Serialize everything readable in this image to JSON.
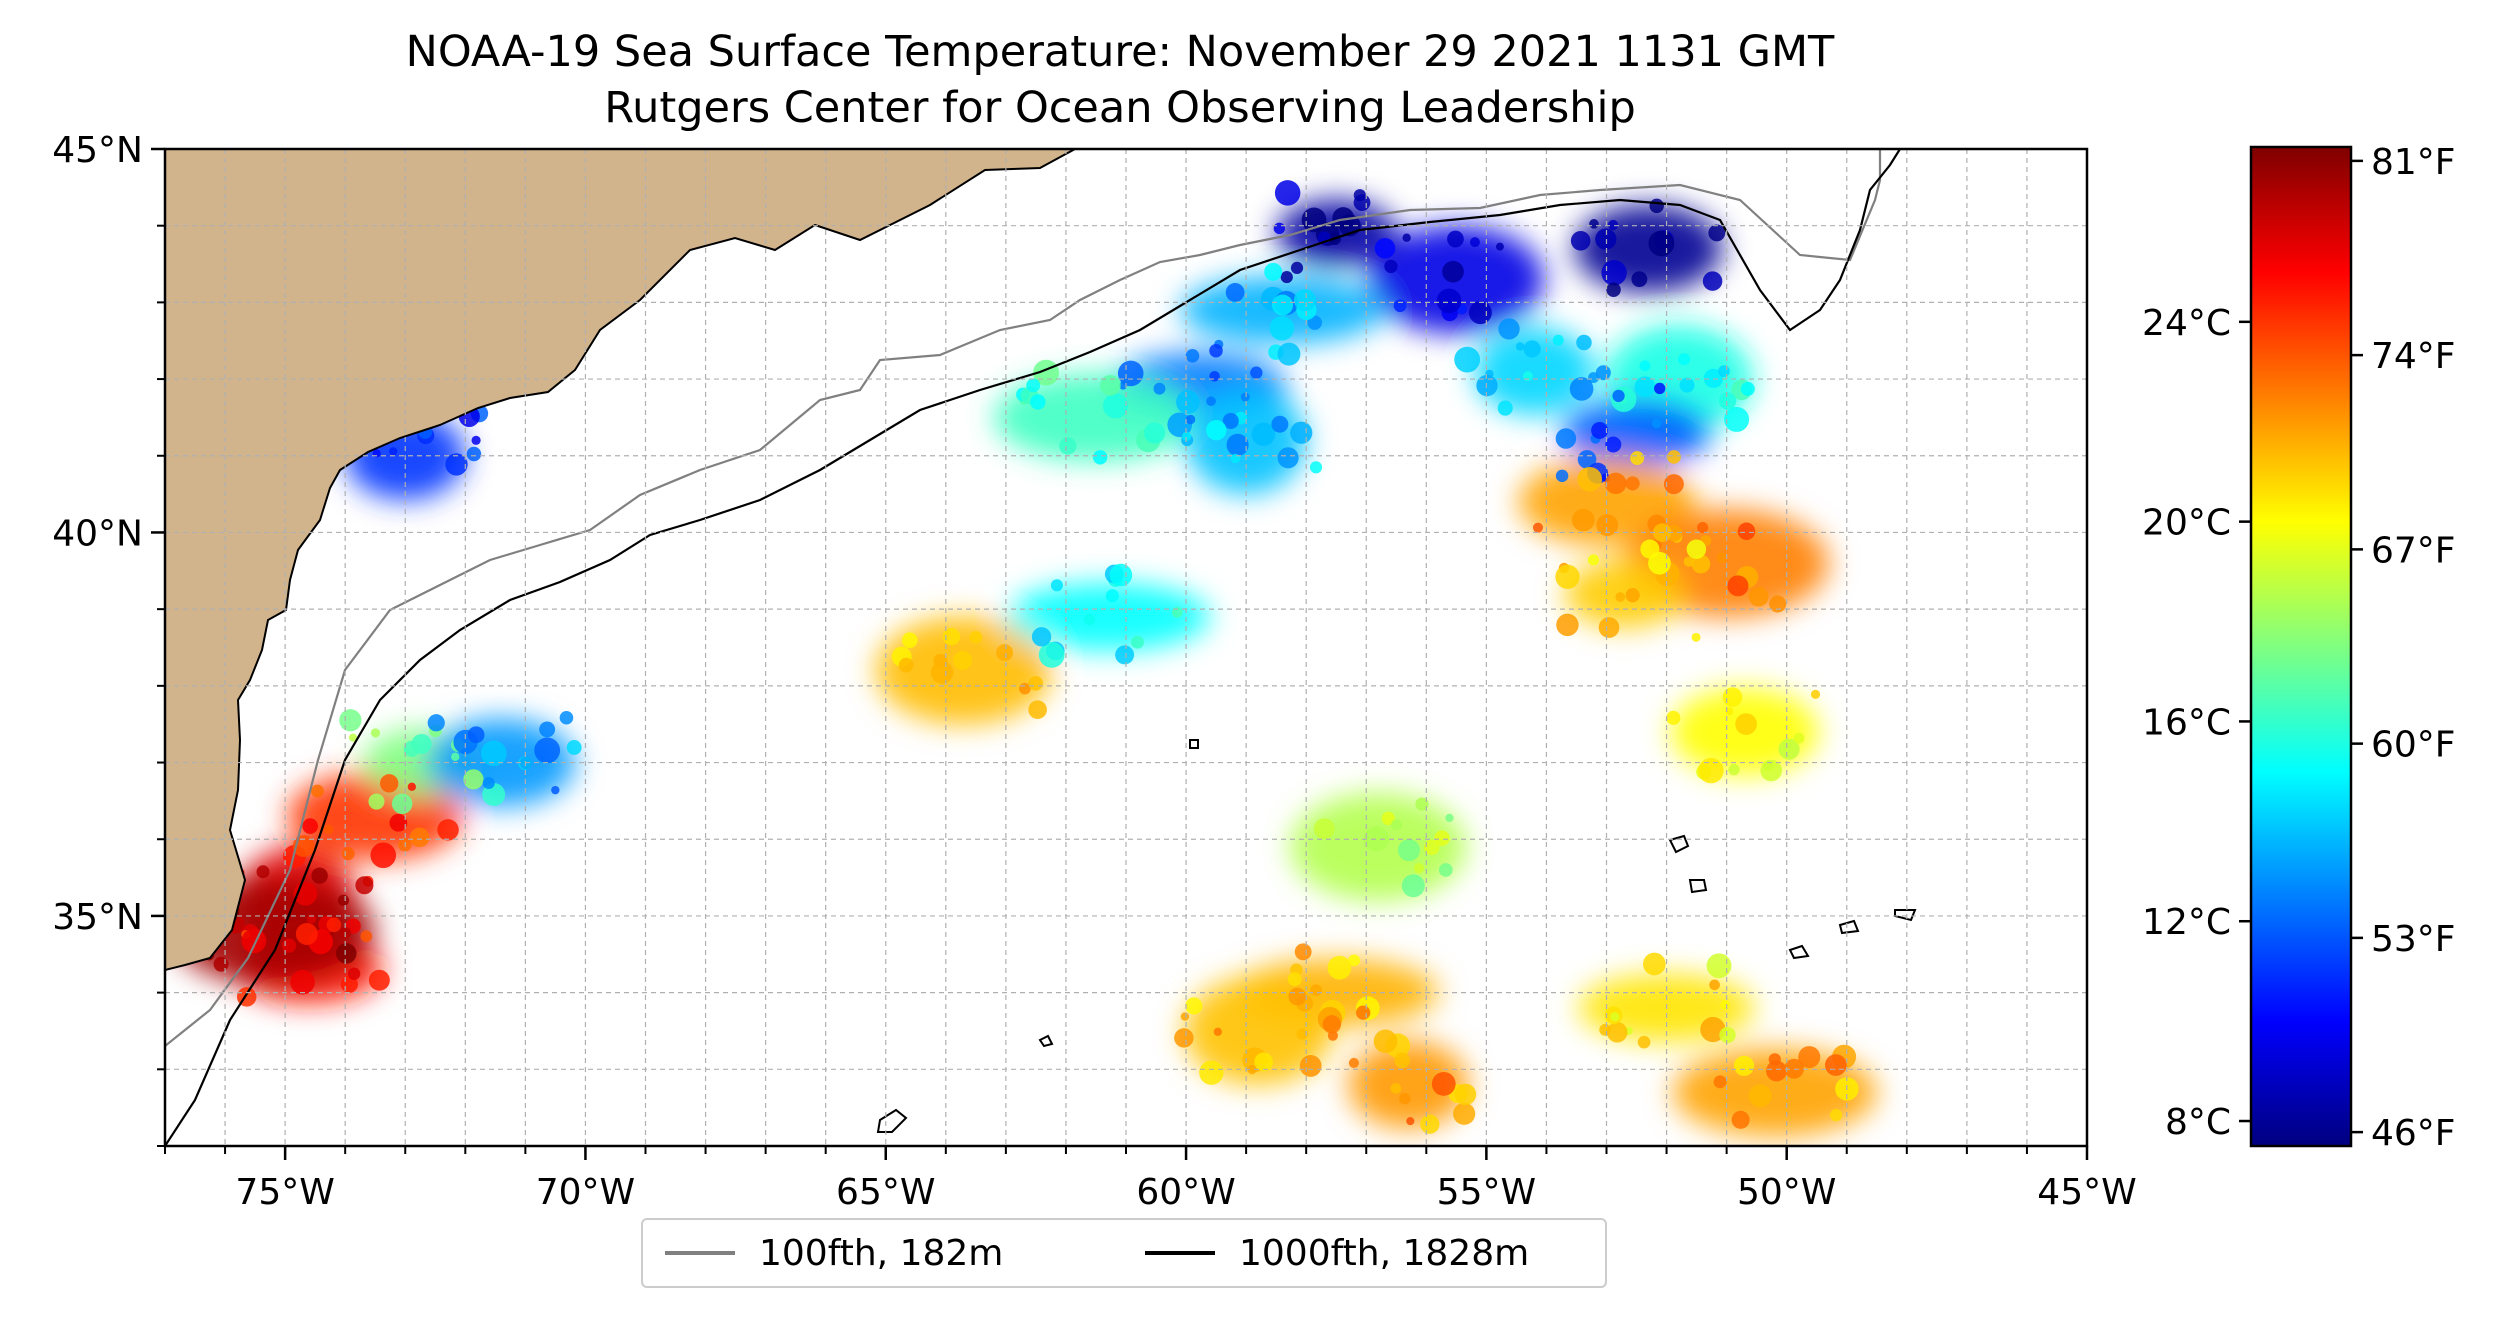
{
  "title_line1": "NOAA-19 Sea Surface Temperature: November 29 2021 1131 GMT",
  "title_line2": "Rutgers Center for Ocean Observing Leadership",
  "map": {
    "lon_range": [
      -77,
      -45
    ],
    "lat_range": [
      32,
      45
    ],
    "x_ticks": [
      {
        "value": -75,
        "label": "75°W"
      },
      {
        "value": -70,
        "label": "70°W"
      },
      {
        "value": -65,
        "label": "65°W"
      },
      {
        "value": -60,
        "label": "60°W"
      },
      {
        "value": -55,
        "label": "55°W"
      },
      {
        "value": -50,
        "label": "50°W"
      },
      {
        "value": -45,
        "label": "45°W"
      }
    ],
    "y_ticks": [
      {
        "value": 45,
        "label": "45°N"
      },
      {
        "value": 40,
        "label": "40°N"
      },
      {
        "value": 35,
        "label": "35°N"
      }
    ],
    "grid": true,
    "land_color": "#d2b48c",
    "water_body_color": "#9fbfe8"
  },
  "colorbar": {
    "colormap": "jet",
    "celsius_range": [
      7.5,
      27.5
    ],
    "celsius_ticks": [
      {
        "value": 8,
        "label": "8°C"
      },
      {
        "value": 12,
        "label": "12°C"
      },
      {
        "value": 16,
        "label": "16°C"
      },
      {
        "value": 20,
        "label": "20°C"
      },
      {
        "value": 24,
        "label": "24°C"
      }
    ],
    "fahrenheit_ticks": [
      {
        "value": 46,
        "label": "46°F"
      },
      {
        "value": 53,
        "label": "53°F"
      },
      {
        "value": 60,
        "label": "60°F"
      },
      {
        "value": 67,
        "label": "67°F"
      },
      {
        "value": 74,
        "label": "74°F"
      },
      {
        "value": 81,
        "label": "81°F"
      }
    ]
  },
  "legend": {
    "items": [
      {
        "label": "100fth, 182m",
        "color": "#808080"
      },
      {
        "label": "1000fth, 1828m",
        "color": "#000000"
      }
    ]
  },
  "sst_patches": [
    {
      "lon": -57.5,
      "lat": 43.9,
      "temp_c": 8.2
    },
    {
      "lon": -52.3,
      "lat": 43.7,
      "temp_c": 7.9
    },
    {
      "lon": -55.5,
      "lat": 43.3,
      "temp_c": 9.5
    },
    {
      "lon": -58.4,
      "lat": 42.9,
      "temp_c": 13.5
    },
    {
      "lon": -54.2,
      "lat": 42.1,
      "temp_c": 14.2
    },
    {
      "lon": -51.8,
      "lat": 42.0,
      "temp_c": 15.5
    },
    {
      "lon": -59.8,
      "lat": 41.9,
      "temp_c": 12.4
    },
    {
      "lon": -61.5,
      "lat": 41.5,
      "temp_c": 16.2
    },
    {
      "lon": -59.0,
      "lat": 41.2,
      "temp_c": 13.8
    },
    {
      "lon": -52.5,
      "lat": 41.3,
      "temp_c": 11.8
    },
    {
      "lon": -53.0,
      "lat": 40.4,
      "temp_c": 21.8
    },
    {
      "lon": -51.0,
      "lat": 39.6,
      "temp_c": 22.5
    },
    {
      "lon": -52.7,
      "lat": 39.2,
      "temp_c": 21.0
    },
    {
      "lon": -50.7,
      "lat": 37.4,
      "temp_c": 20.0
    },
    {
      "lon": -56.8,
      "lat": 35.9,
      "temp_c": 18.5
    },
    {
      "lon": -57.5,
      "lat": 34.0,
      "temp_c": 21.5
    },
    {
      "lon": -56.3,
      "lat": 32.8,
      "temp_c": 22.0
    },
    {
      "lon": -58.8,
      "lat": 33.5,
      "temp_c": 21.2
    },
    {
      "lon": -52.0,
      "lat": 33.8,
      "temp_c": 20.5
    },
    {
      "lon": -50.2,
      "lat": 32.7,
      "temp_c": 21.8
    },
    {
      "lon": -74.8,
      "lat": 35.2,
      "temp_c": 25.5
    },
    {
      "lon": -74.6,
      "lat": 34.3,
      "temp_c": 24.5
    },
    {
      "lon": -73.5,
      "lat": 36.3,
      "temp_c": 24.0
    },
    {
      "lon": -75.2,
      "lat": 34.8,
      "temp_c": 26.8
    },
    {
      "lon": -72.7,
      "lat": 37.0,
      "temp_c": 17.5
    },
    {
      "lon": -71.4,
      "lat": 37.0,
      "temp_c": 13.0
    },
    {
      "lon": -63.7,
      "lat": 38.2,
      "temp_c": 21.3
    },
    {
      "lon": -61.3,
      "lat": 38.9,
      "temp_c": 15.0
    },
    {
      "lon": -73.0,
      "lat": 41.0,
      "temp_c": 11.0
    }
  ]
}
